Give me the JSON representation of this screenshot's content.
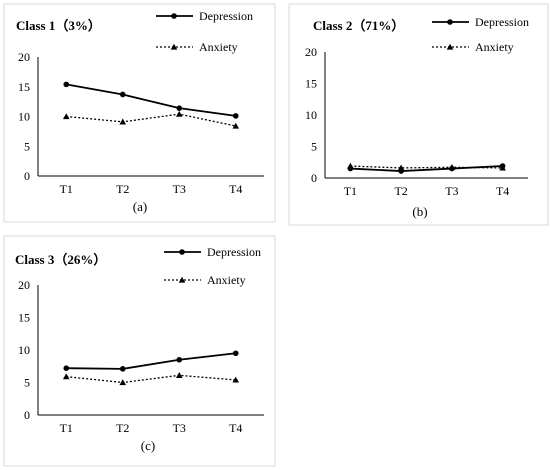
{
  "chart_data": [
    {
      "type": "line",
      "title": "Class 1（3%）",
      "caption": "(a)",
      "categories": [
        "T1",
        "T2",
        "T3",
        "T4"
      ],
      "ylim": [
        0,
        20
      ],
      "yticks": [
        "0",
        "5",
        "10",
        "15",
        "20"
      ],
      "legend_position": "top-right",
      "grid": false,
      "series": [
        {
          "name": "Depression",
          "values": [
            15.4,
            13.7,
            11.4,
            10.1
          ],
          "style": "solid",
          "marker": "circle"
        },
        {
          "name": "Anxiety",
          "values": [
            10.0,
            9.1,
            10.4,
            8.4
          ],
          "style": "dotted",
          "marker": "triangle"
        }
      ]
    },
    {
      "type": "line",
      "title": "Class 2（71%）",
      "caption": "(b)",
      "categories": [
        "T1",
        "T2",
        "T3",
        "T4"
      ],
      "ylim": [
        0,
        20
      ],
      "yticks": [
        "0",
        "5",
        "10",
        "15",
        "20"
      ],
      "legend_position": "top-right",
      "grid": false,
      "series": [
        {
          "name": "Depression",
          "values": [
            1.5,
            1.1,
            1.5,
            1.9
          ],
          "style": "solid",
          "marker": "circle"
        },
        {
          "name": "Anxiety",
          "values": [
            1.9,
            1.6,
            1.7,
            1.6
          ],
          "style": "dotted",
          "marker": "triangle"
        }
      ]
    },
    {
      "type": "line",
      "title": "Class 3（26%）",
      "caption": "(c)",
      "categories": [
        "T1",
        "T2",
        "T3",
        "T4"
      ],
      "ylim": [
        0,
        20
      ],
      "yticks": [
        "0",
        "5",
        "10",
        "15",
        "20"
      ],
      "legend_position": "top-right",
      "grid": false,
      "series": [
        {
          "name": "Depression",
          "values": [
            7.2,
            7.1,
            8.5,
            9.5
          ],
          "style": "solid",
          "marker": "circle"
        },
        {
          "name": "Anxiety",
          "values": [
            5.9,
            5.0,
            6.1,
            5.4
          ],
          "style": "dotted",
          "marker": "triangle"
        }
      ]
    }
  ],
  "colors": {
    "line": "#000000",
    "frame": "#d9d9d9"
  }
}
